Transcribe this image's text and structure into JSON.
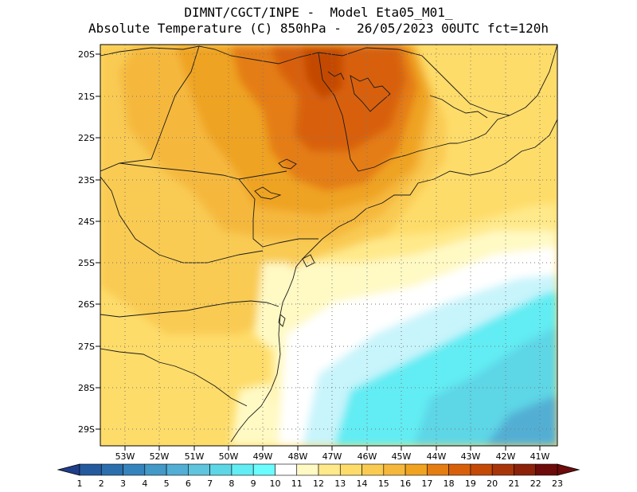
{
  "header": {
    "line1": "DIMNT/CGCT/INPE -  Model Eta05_M01_",
    "line2": "Absolute Temperature (C) 850hPa -  26/05/2023 00UTC fct=120h"
  },
  "map": {
    "lat_labels": [
      "20S",
      "21S",
      "22S",
      "23S",
      "24S",
      "25S",
      "26S",
      "27S",
      "28S",
      "29S"
    ],
    "lon_labels": [
      "53W",
      "52W",
      "51W",
      "50W",
      "49W",
      "48W",
      "47W",
      "46W",
      "45W",
      "44W",
      "43W",
      "42W",
      "41W"
    ],
    "extent": {
      "lon_min": -53.8,
      "lon_max": -40.6,
      "lat_min": -29.4,
      "lat_max": -19.8
    }
  },
  "colorbar": {
    "labels": [
      "1",
      "2",
      "3",
      "4",
      "5",
      "6",
      "7",
      "8",
      "9",
      "10",
      "11",
      "12",
      "13",
      "14",
      "15",
      "16",
      "17",
      "18",
      "19",
      "20",
      "21",
      "22",
      "23"
    ],
    "colors": [
      "#1f3e8a",
      "#245a9e",
      "#2c6fae",
      "#3684bd",
      "#4399c8",
      "#52aed4",
      "#5fc4dd",
      "#5dd6e6",
      "#62ecf3",
      "#6bfdfd",
      "#ffffff",
      "#fff9c4",
      "#ffe98a",
      "#fedc6a",
      "#f9cb52",
      "#f5b83c",
      "#efa320",
      "#e47d12",
      "#d8600b",
      "#c44a06",
      "#a8360a",
      "#8c2209",
      "#6e0b0b"
    ]
  }
}
